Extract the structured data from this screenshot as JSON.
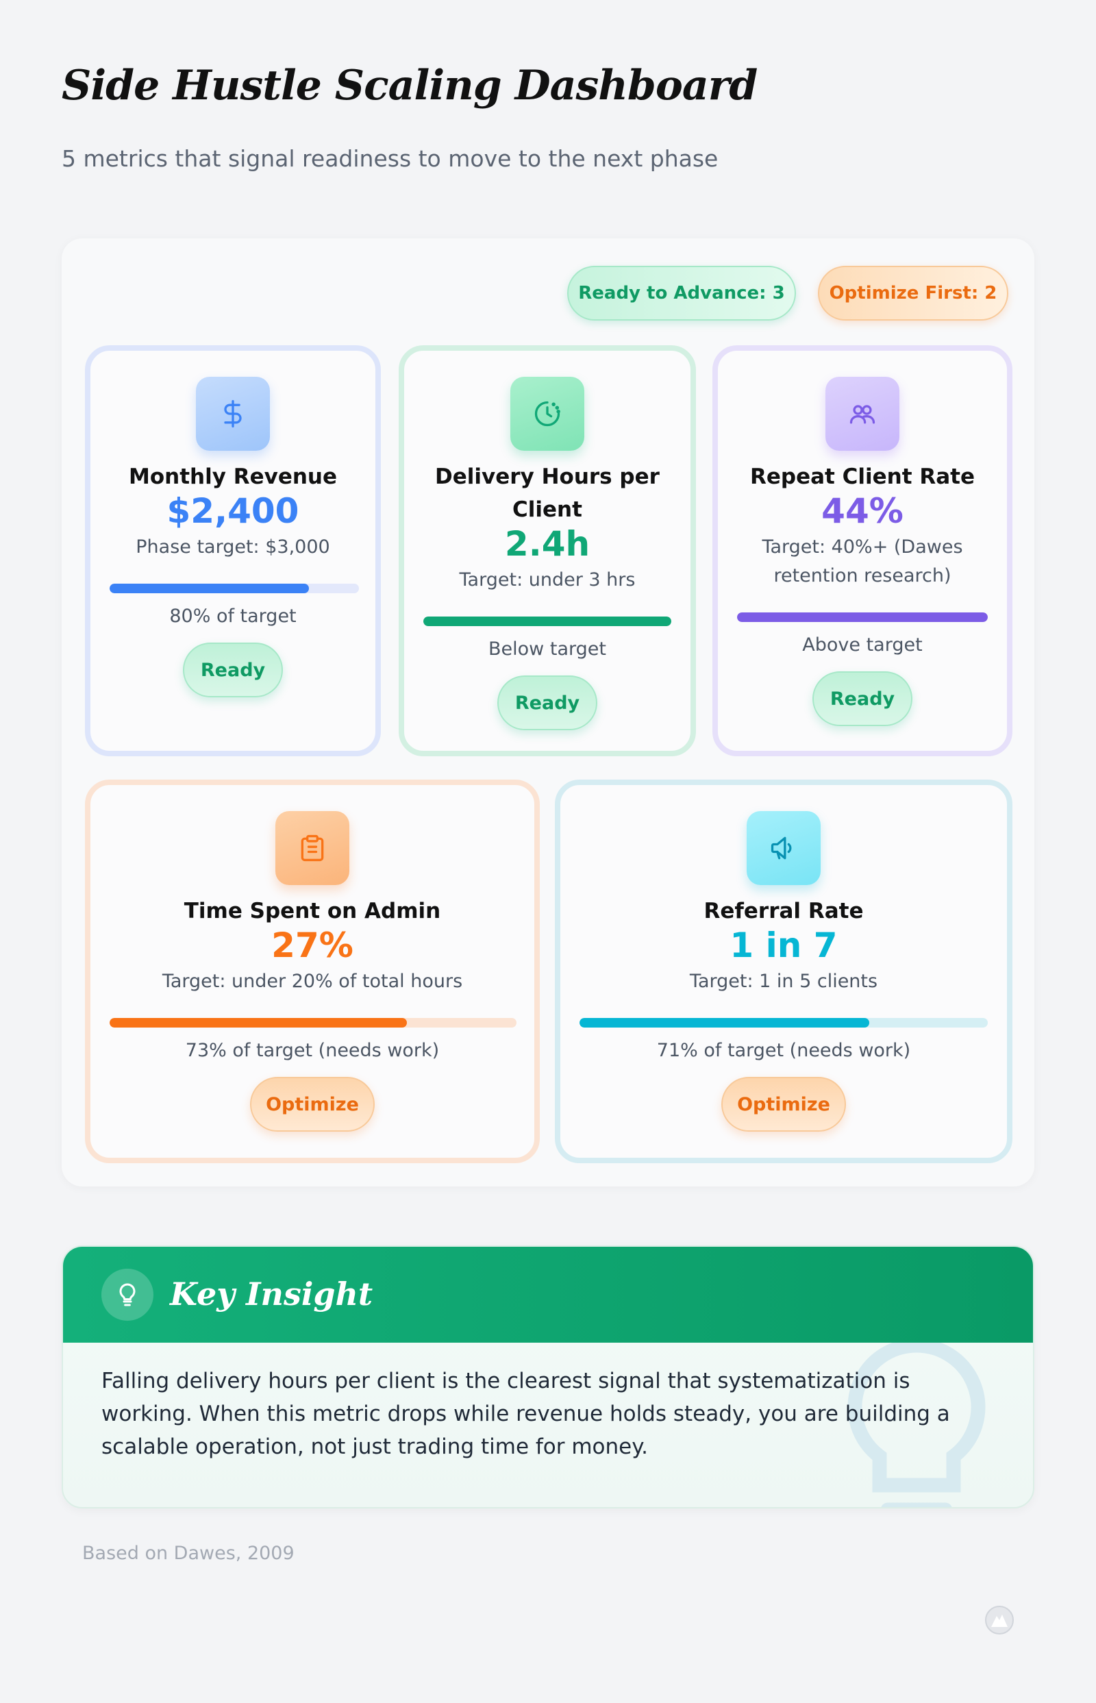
{
  "header": {
    "title": "Side Hustle Scaling Dashboard",
    "subtitle": "5 metrics that signal readiness to move to the next phase"
  },
  "summary": {
    "ready_label": "Ready to Advance: 3",
    "optimize_label": "Optimize First: 2"
  },
  "metrics": [
    {
      "icon": "dollar-icon",
      "title": "Monthly Revenue",
      "value": "$2,400",
      "target": "Phase target: $3,000",
      "progress": 80,
      "note": "80% of target",
      "status": "Ready",
      "color": "#3b82f6",
      "track": "#e3e8fb"
    },
    {
      "icon": "timer-icon",
      "title": "Delivery Hours per Client",
      "value": "2.4h",
      "target": "Target: under 3 hrs",
      "progress": 100,
      "note": "Below target",
      "status": "Ready",
      "color": "#10a776",
      "track": "#d1f0e2"
    },
    {
      "icon": "users-icon",
      "title": "Repeat Client Rate",
      "value": "44%",
      "target": "Target: 40%+ (Dawes retention research)",
      "progress": 100,
      "note": "Above target",
      "status": "Ready",
      "color": "#7c5ce6",
      "track": "#e7e1fb"
    },
    {
      "icon": "clipboard-icon",
      "title": "Time Spent on Admin",
      "value": "27%",
      "target": "Target: under 20% of total hours",
      "progress": 73,
      "note": "73% of target (needs work)",
      "status": "Optimize",
      "color": "#f97316",
      "track": "#fbe3d3"
    },
    {
      "icon": "megaphone-icon",
      "title": "Referral Rate",
      "value": "1 in 7",
      "target": "Target: 1 in 5 clients",
      "progress": 71,
      "note": "71% of target (needs work)",
      "status": "Optimize",
      "color": "#06b6d4",
      "track": "#d5eff4"
    }
  ],
  "insight": {
    "icon": "lightbulb-icon",
    "title": "Key Insight",
    "body": "Falling delivery hours per client is the clearest signal that systematization is working. When this metric drops while revenue holds steady, you are building a scalable operation, not just trading time for money."
  },
  "footer": {
    "source": "Based on Dawes, 2009"
  }
}
